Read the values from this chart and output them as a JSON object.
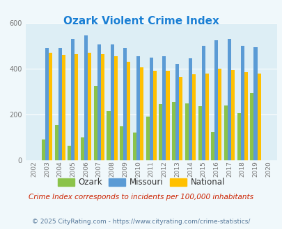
{
  "title": "Ozark Violent Crime Index",
  "years": [
    2002,
    2003,
    2004,
    2005,
    2006,
    2007,
    2008,
    2009,
    2010,
    2011,
    2012,
    2013,
    2014,
    2015,
    2016,
    2017,
    2018,
    2019,
    2020
  ],
  "ozark": [
    0,
    90,
    155,
    65,
    100,
    325,
    215,
    150,
    120,
    190,
    245,
    255,
    250,
    235,
    125,
    240,
    205,
    295,
    0
  ],
  "missouri": [
    0,
    490,
    490,
    530,
    545,
    505,
    505,
    490,
    455,
    450,
    455,
    420,
    445,
    500,
    525,
    530,
    500,
    495,
    0
  ],
  "national": [
    0,
    470,
    460,
    465,
    470,
    465,
    455,
    430,
    405,
    390,
    390,
    365,
    375,
    380,
    400,
    395,
    385,
    380,
    0
  ],
  "ozark_color": "#8bc34a",
  "missouri_color": "#5b9bd5",
  "national_color": "#ffc000",
  "bg_color": "#f0f8fb",
  "plot_bg": "#ddeef5",
  "title_color": "#1a7fd4",
  "ylim": [
    0,
    600
  ],
  "yticks": [
    0,
    200,
    400,
    600
  ],
  "subtitle": "Crime Index corresponds to incidents per 100,000 inhabitants",
  "footer": "© 2025 CityRating.com - https://www.cityrating.com/crime-statistics/",
  "subtitle_color": "#cc2200",
  "footer_color": "#557799"
}
